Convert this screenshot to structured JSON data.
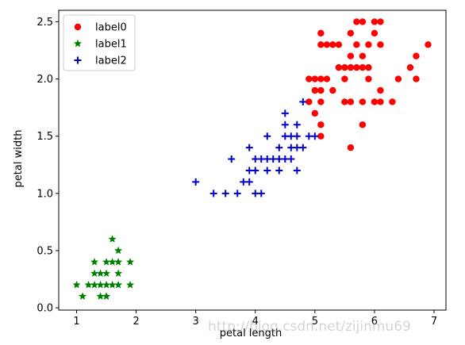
{
  "chart_data": {
    "type": "scatter",
    "xlabel": "petal length",
    "ylabel": "petal width",
    "xlim": [
      0.7,
      7.2
    ],
    "ylim": [
      -0.02,
      2.6
    ],
    "xticks": [
      "1",
      "2",
      "3",
      "4",
      "5",
      "6",
      "7"
    ],
    "yticks": [
      "0.0",
      "0.5",
      "1.0",
      "1.5",
      "2.0",
      "2.5"
    ],
    "legend_position": "top-left",
    "series": [
      {
        "name": "label0",
        "color": "#ff0000",
        "marker": "circle",
        "points": [
          [
            5.1,
            2.4
          ],
          [
            5.1,
            2.3
          ],
          [
            5.2,
            2.3
          ],
          [
            5.3,
            2.3
          ],
          [
            5.6,
            2.4
          ],
          [
            5.7,
            2.5
          ],
          [
            5.8,
            2.5
          ],
          [
            6.0,
            2.5
          ],
          [
            6.1,
            2.5
          ],
          [
            5.4,
            2.3
          ],
          [
            5.6,
            2.2
          ],
          [
            5.7,
            2.3
          ],
          [
            5.8,
            2.2
          ],
          [
            5.9,
            2.3
          ],
          [
            6.1,
            2.3
          ],
          [
            6.0,
            2.4
          ],
          [
            6.9,
            2.3
          ],
          [
            6.7,
            2.2
          ],
          [
            5.0,
            2.0
          ],
          [
            5.1,
            2.0
          ],
          [
            5.2,
            2.0
          ],
          [
            4.9,
            2.0
          ],
          [
            4.9,
            1.8
          ],
          [
            5.1,
            1.9
          ],
          [
            5.0,
            1.9
          ],
          [
            5.3,
            1.9
          ],
          [
            5.4,
            2.1
          ],
          [
            5.5,
            2.1
          ],
          [
            5.6,
            2.1
          ],
          [
            5.7,
            2.1
          ],
          [
            5.8,
            2.1
          ],
          [
            5.9,
            2.1
          ],
          [
            6.1,
            1.9
          ],
          [
            6.4,
            2.0
          ],
          [
            6.6,
            2.1
          ],
          [
            6.7,
            2.0
          ],
          [
            5.5,
            1.8
          ],
          [
            5.6,
            1.8
          ],
          [
            5.8,
            1.8
          ],
          [
            6.0,
            1.8
          ],
          [
            6.1,
            1.8
          ],
          [
            6.3,
            1.8
          ],
          [
            5.1,
            1.8
          ],
          [
            5.0,
            1.7
          ],
          [
            5.1,
            1.6
          ],
          [
            5.1,
            1.5
          ],
          [
            5.8,
            1.6
          ],
          [
            5.6,
            1.4
          ],
          [
            5.9,
            2.0
          ],
          [
            5.5,
            2.0
          ]
        ]
      },
      {
        "name": "label1",
        "color": "#008000",
        "marker": "star",
        "points": [
          [
            1.6,
            0.6
          ],
          [
            1.7,
            0.5
          ],
          [
            1.3,
            0.4
          ],
          [
            1.5,
            0.4
          ],
          [
            1.6,
            0.4
          ],
          [
            1.7,
            0.4
          ],
          [
            1.9,
            0.4
          ],
          [
            1.3,
            0.3
          ],
          [
            1.4,
            0.3
          ],
          [
            1.5,
            0.3
          ],
          [
            1.7,
            0.3
          ],
          [
            1.0,
            0.2
          ],
          [
            1.2,
            0.2
          ],
          [
            1.3,
            0.2
          ],
          [
            1.4,
            0.2
          ],
          [
            1.5,
            0.2
          ],
          [
            1.6,
            0.2
          ],
          [
            1.7,
            0.2
          ],
          [
            1.9,
            0.2
          ],
          [
            1.1,
            0.1
          ],
          [
            1.4,
            0.1
          ],
          [
            1.5,
            0.1
          ],
          [
            1.5,
            0.1
          ]
        ]
      },
      {
        "name": "label2",
        "color": "#0000cc",
        "marker": "plus",
        "points": [
          [
            4.8,
            1.8
          ],
          [
            4.5,
            1.7
          ],
          [
            4.5,
            1.6
          ],
          [
            4.7,
            1.6
          ],
          [
            4.2,
            1.5
          ],
          [
            4.5,
            1.5
          ],
          [
            4.6,
            1.5
          ],
          [
            4.7,
            1.5
          ],
          [
            4.9,
            1.5
          ],
          [
            5.0,
            1.5
          ],
          [
            3.9,
            1.4
          ],
          [
            4.4,
            1.4
          ],
          [
            4.6,
            1.4
          ],
          [
            4.7,
            1.4
          ],
          [
            4.8,
            1.4
          ],
          [
            3.6,
            1.3
          ],
          [
            4.0,
            1.3
          ],
          [
            4.1,
            1.3
          ],
          [
            4.2,
            1.3
          ],
          [
            4.3,
            1.3
          ],
          [
            4.4,
            1.3
          ],
          [
            4.5,
            1.3
          ],
          [
            4.6,
            1.3
          ],
          [
            3.9,
            1.2
          ],
          [
            4.0,
            1.2
          ],
          [
            4.2,
            1.2
          ],
          [
            4.4,
            1.2
          ],
          [
            4.7,
            1.2
          ],
          [
            3.0,
            1.1
          ],
          [
            3.8,
            1.1
          ],
          [
            3.3,
            1.0
          ],
          [
            3.5,
            1.0
          ],
          [
            3.7,
            1.0
          ],
          [
            4.0,
            1.0
          ],
          [
            4.1,
            1.0
          ],
          [
            3.9,
            1.1
          ]
        ]
      }
    ]
  },
  "watermark": "http://blog.csdn.net/zijinmu69"
}
